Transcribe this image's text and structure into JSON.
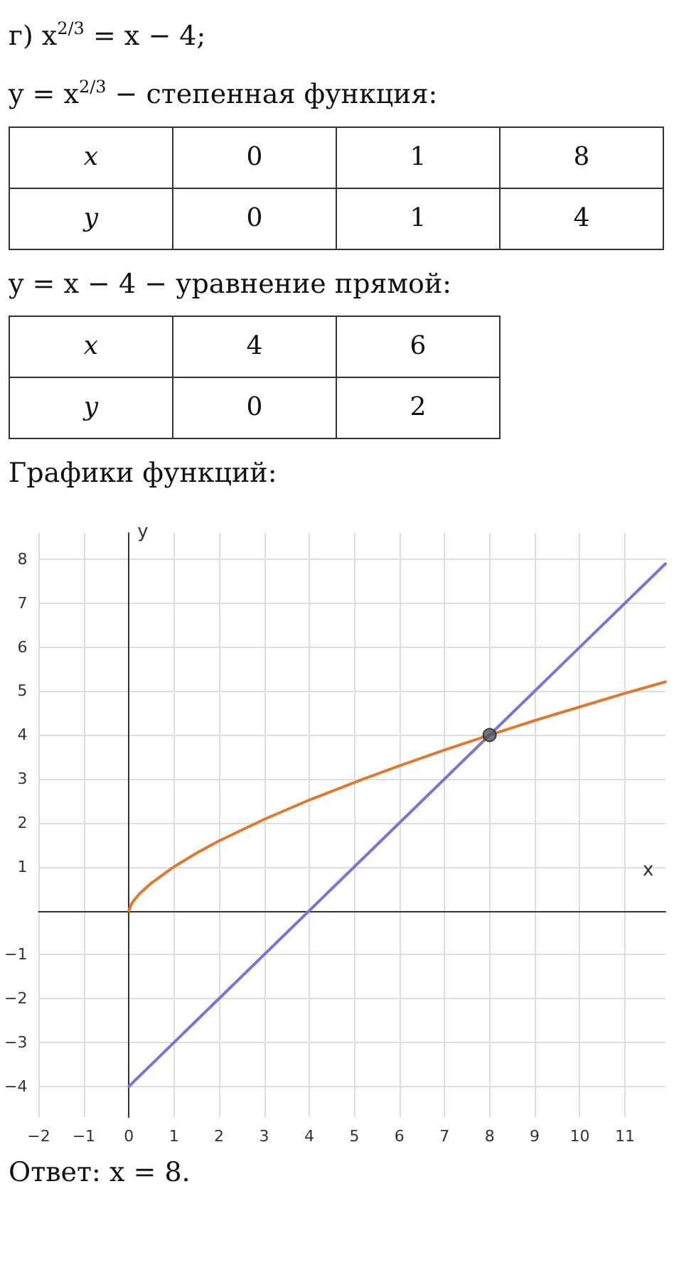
{
  "chart_data": {
    "type": "line",
    "annotations": [
      "г) x$^{2/3}$ = x − 4;",
      "y = x$^{2/3}$ − степенная функция:",
      "x",
      "0",
      "1",
      "8",
      "y",
      "0",
      "1",
      "4",
      "y = x − 4 − уравнение прямой:",
      "x",
      "4",
      "6",
      "y",
      "0",
      "2",
      "Графики функций:",
      "Ответ:  x = 8."
    ],
    "xlabel": "x",
    "ylabel": "y",
    "series": [
      {
        "color": "#e0792f",
        "marker": "none",
        "x": [
          0,
          0.05,
          0.1,
          0.25,
          0.5,
          1,
          1.5,
          2,
          3,
          4,
          5,
          6,
          7,
          8,
          9,
          10,
          11,
          11.9
        ],
        "values": [
          0,
          0.14,
          0.22,
          0.4,
          0.63,
          1,
          1.31,
          1.59,
          2.08,
          2.52,
          2.92,
          3.3,
          3.66,
          4,
          4.33,
          4.64,
          4.95,
          5.21
        ]
      },
      {
        "color": "#7b74d8",
        "marker": "none",
        "x": [
          0,
          11.9
        ],
        "values": [
          -4,
          7.9
        ]
      },
      {
        "type": "scatter",
        "color": "#555555",
        "marker": "circle",
        "x": [
          8
        ],
        "values": [
          4
        ]
      }
    ],
    "xlim": [
      -2,
      11.9
    ],
    "ylim": [
      -4.7,
      8.6
    ],
    "xticks": [
      -2,
      -1,
      0,
      1,
      2,
      3,
      4,
      5,
      6,
      7,
      8,
      9,
      10,
      11
    ],
    "yticks": [
      -4,
      -3,
      -2,
      -1,
      1,
      2,
      3,
      4,
      5,
      6,
      7,
      8
    ],
    "grid": true
  }
}
